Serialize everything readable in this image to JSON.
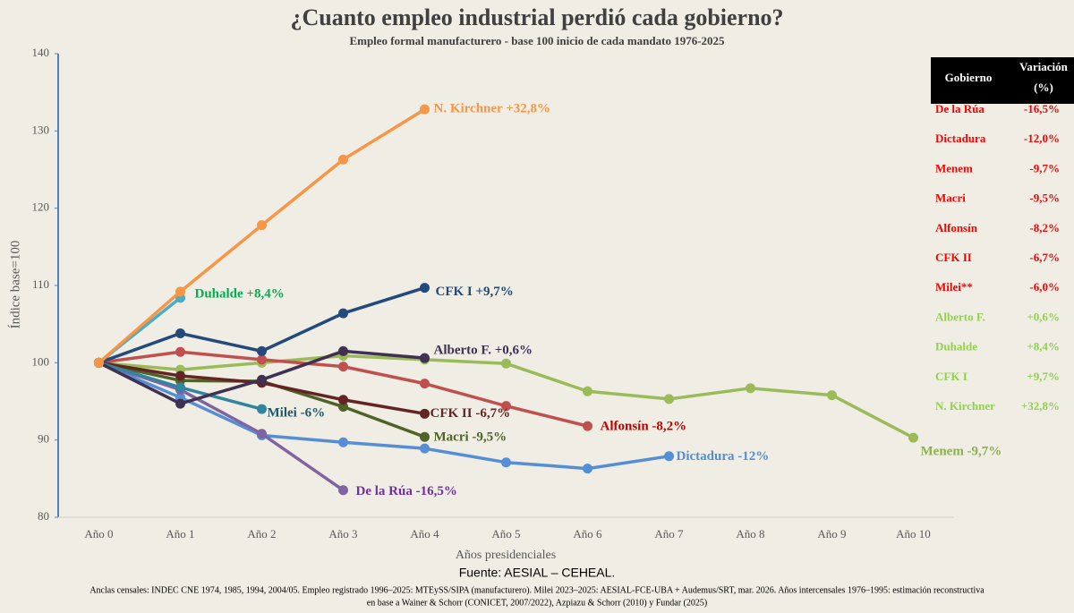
{
  "chart_data": {
    "type": "line",
    "title": "¿Cuanto empleo industrial perdió cada gobierno?",
    "subtitle": "Empleo formal manufacturero - base 100 inicio de cada mandato 1976-2025",
    "y_label": "Índice base=100",
    "x_label": "Años presidenciales",
    "categories": [
      "Año 0",
      "Año 1",
      "Año 2",
      "Año 3",
      "Año 4",
      "Año 5",
      "Año 6",
      "Año 7",
      "Año 8",
      "Año 9",
      "Año 10"
    ],
    "ylim": [
      80,
      140
    ],
    "yticks": [
      80,
      90,
      100,
      110,
      120,
      130,
      140
    ],
    "grid": false,
    "series": [
      {
        "name": "Menem",
        "label": "Menem  -9,7%",
        "color": "#9bbb59",
        "label_color": "#8fb04e",
        "values": [
          100,
          99.1,
          100.0,
          100.9,
          100.4,
          99.9,
          96.3,
          95.3,
          96.7,
          95.8,
          90.3
        ]
      },
      {
        "name": "Dictadura",
        "label": "Dictadura  -12%",
        "color": "#558ed5",
        "label_color": "#558ed5",
        "values": [
          100,
          95.5,
          90.6,
          89.7,
          88.9,
          87.1,
          86.3,
          87.9,
          null,
          null,
          null
        ]
      },
      {
        "name": "Alfonsín",
        "label": "Alfonsín  -8,2%",
        "color": "#c0504d",
        "label_color": "#c00000",
        "values": [
          100,
          101.4,
          100.4,
          99.5,
          97.3,
          94.4,
          91.8,
          null,
          null,
          null,
          null
        ]
      },
      {
        "name": "De la Rúa",
        "label": "De la Rúa  -16,5%",
        "color": "#8064a2",
        "label_color": "#7030a0",
        "values": [
          100,
          96.5,
          90.8,
          83.5,
          null,
          null,
          null,
          null,
          null,
          null,
          null
        ]
      },
      {
        "name": "Macri",
        "label": "Macri  -9,5%",
        "color": "#4f6228",
        "label_color": "#4f6228",
        "values": [
          100,
          97.7,
          97.6,
          94.3,
          90.4,
          null,
          null,
          null,
          null,
          null,
          null
        ]
      },
      {
        "name": "CFK II",
        "label": "CFK II   -6,7%",
        "color": "#632523",
        "label_color": "#632523",
        "values": [
          100,
          98.3,
          97.4,
          95.2,
          93.4,
          null,
          null,
          null,
          null,
          null,
          null
        ]
      },
      {
        "name": "Milei",
        "label": "Milei  -6%",
        "color": "#31859c",
        "label_color": "#215868",
        "values": [
          100,
          96.8,
          94.0,
          null,
          null,
          null,
          null,
          null,
          null,
          null,
          null
        ]
      },
      {
        "name": "Alberto F.",
        "label": "Alberto F.  +0,6%",
        "color": "#3f3151",
        "label_color": "#3f3151",
        "values": [
          100,
          94.7,
          97.8,
          101.5,
          100.6,
          null,
          null,
          null,
          null,
          null,
          null
        ]
      },
      {
        "name": "CFK I",
        "label": "CFK I  +9,7%",
        "color": "#244a7c",
        "label_color": "#244a7c",
        "values": [
          100,
          103.8,
          101.5,
          106.4,
          109.7,
          null,
          null,
          null,
          null,
          null,
          null
        ]
      },
      {
        "name": "Duhalde",
        "label": "Duhalde  +8,4%",
        "color": "#4bacc6",
        "label_color": "#00b050",
        "values": [
          100,
          108.4,
          null,
          null,
          null,
          null,
          null,
          null,
          null,
          null,
          null
        ]
      },
      {
        "name": "N. Kirchner",
        "label": "N. Kirchner  +32,8%",
        "color": "#f79646",
        "label_color": "#f79646",
        "values": [
          100,
          109.2,
          117.8,
          126.3,
          132.8,
          null,
          null,
          null,
          null,
          null,
          null
        ]
      }
    ],
    "source": "Fuente: AESIAL – CEHEAL.",
    "note": [
      "Anclas censales: INDEC CNE 1974, 1985, 1994, 2004/05. Empleo registrado 1996–2025: MTEySS/SIPA (manufacturero). Milei 2023–2025: AESIAL-FCE-UBA + Audemus/SRT, mar. 2026. Años intercensales 1976–1995: estimación reconstructiva",
      "en base a Wainer & Schorr (CONICET, 2007/2022), Azpiazu & Schorr (2010) y Fundar (2025)"
    ]
  },
  "table": {
    "header": [
      "Gobierno",
      [
        "Variación",
        "(%)"
      ]
    ],
    "rows": [
      {
        "cells": [
          "De la Rúa",
          "-16,5%"
        ],
        "color": "#ff0000"
      },
      {
        "cells": [
          "Dictadura",
          "-12,0%"
        ],
        "color": "#ff0000"
      },
      {
        "cells": [
          "Menem",
          "-9,7%"
        ],
        "color": "#ff0000"
      },
      {
        "cells": [
          "Macri",
          "-9,5%"
        ],
        "color": "#ff0000"
      },
      {
        "cells": [
          "Alfonsín",
          "-8,2%"
        ],
        "color": "#ff0000"
      },
      {
        "cells": [
          "CFK II",
          "-6,7%"
        ],
        "color": "#ff0000"
      },
      {
        "cells": [
          "Milei**",
          "-6,0%"
        ],
        "color": "#ff0000"
      },
      {
        "cells": [
          "Alberto F.",
          "+0,6%"
        ],
        "color": "#92d050"
      },
      {
        "cells": [
          "Duhalde",
          "+8,4%"
        ],
        "color": "#92d050"
      },
      {
        "cells": [
          "CFK I",
          "+9,7%"
        ],
        "color": "#92d050"
      },
      {
        "cells": [
          "N. Kirchner",
          "+32,8%"
        ],
        "color": "#92d050"
      }
    ]
  }
}
